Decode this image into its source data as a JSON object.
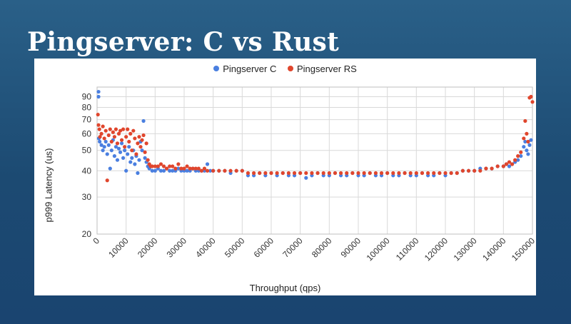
{
  "slide": {
    "title": "Pingserver: C vs Rust"
  },
  "chart_data": {
    "type": "scatter",
    "title": "",
    "xlabel": "Throughput (qps)",
    "ylabel": "p999 Latency (us)",
    "xlim": [
      0,
      150000
    ],
    "ylim": [
      20,
      100
    ],
    "y_scale": "log",
    "grid": true,
    "legend_position": "top",
    "x_ticks": [
      0,
      10000,
      20000,
      30000,
      40000,
      50000,
      60000,
      70000,
      80000,
      90000,
      100000,
      110000,
      120000,
      130000,
      140000,
      150000
    ],
    "y_ticks": [
      20,
      30,
      40,
      50,
      60,
      70,
      80,
      90
    ],
    "series": [
      {
        "name": "Pingserver C",
        "color": "#4a7fe0",
        "points": [
          [
            500,
            95
          ],
          [
            500,
            90
          ],
          [
            600,
            57
          ],
          [
            900,
            55
          ],
          [
            1500,
            53
          ],
          [
            2000,
            50
          ],
          [
            2500,
            52
          ],
          [
            3000,
            55
          ],
          [
            3500,
            48
          ],
          [
            4000,
            53
          ],
          [
            4500,
            41
          ],
          [
            5000,
            50
          ],
          [
            5500,
            56
          ],
          [
            6000,
            47
          ],
          [
            6500,
            52
          ],
          [
            7000,
            45
          ],
          [
            7500,
            51
          ],
          [
            8000,
            49
          ],
          [
            8500,
            54
          ],
          [
            9000,
            46
          ],
          [
            9500,
            50
          ],
          [
            10000,
            40
          ],
          [
            10500,
            48
          ],
          [
            11000,
            52
          ],
          [
            11500,
            44
          ],
          [
            12000,
            46
          ],
          [
            12500,
            50
          ],
          [
            13000,
            43
          ],
          [
            13500,
            47
          ],
          [
            14000,
            39
          ],
          [
            14500,
            45
          ],
          [
            15000,
            55
          ],
          [
            15500,
            50
          ],
          [
            16000,
            69
          ],
          [
            16500,
            46
          ],
          [
            17000,
            44
          ],
          [
            17500,
            42
          ],
          [
            18000,
            41
          ],
          [
            19000,
            40
          ],
          [
            20000,
            40
          ],
          [
            21000,
            41
          ],
          [
            22000,
            40
          ],
          [
            23000,
            40
          ],
          [
            24000,
            41
          ],
          [
            25000,
            40
          ],
          [
            26000,
            40
          ],
          [
            27000,
            40
          ],
          [
            28000,
            41
          ],
          [
            29000,
            40
          ],
          [
            30000,
            40
          ],
          [
            31000,
            40
          ],
          [
            32000,
            40
          ],
          [
            33000,
            41
          ],
          [
            34000,
            40
          ],
          [
            35000,
            40
          ],
          [
            36000,
            40
          ],
          [
            37000,
            40
          ],
          [
            38000,
            43
          ],
          [
            39000,
            40
          ],
          [
            40000,
            40
          ],
          [
            42000,
            40
          ],
          [
            44000,
            40
          ],
          [
            46000,
            39
          ],
          [
            48000,
            40
          ],
          [
            50000,
            40
          ],
          [
            52000,
            38
          ],
          [
            54000,
            38
          ],
          [
            56000,
            39
          ],
          [
            58000,
            38
          ],
          [
            60000,
            39
          ],
          [
            62000,
            38
          ],
          [
            64000,
            39
          ],
          [
            66000,
            38
          ],
          [
            68000,
            38
          ],
          [
            70000,
            39
          ],
          [
            72000,
            37
          ],
          [
            74000,
            38
          ],
          [
            76000,
            39
          ],
          [
            78000,
            38
          ],
          [
            80000,
            38
          ],
          [
            82000,
            39
          ],
          [
            84000,
            38
          ],
          [
            86000,
            38
          ],
          [
            88000,
            39
          ],
          [
            90000,
            38
          ],
          [
            92000,
            38
          ],
          [
            94000,
            39
          ],
          [
            96000,
            38
          ],
          [
            98000,
            38
          ],
          [
            100000,
            39
          ],
          [
            102000,
            38
          ],
          [
            104000,
            38
          ],
          [
            106000,
            39
          ],
          [
            108000,
            38
          ],
          [
            110000,
            38
          ],
          [
            112000,
            39
          ],
          [
            114000,
            38
          ],
          [
            116000,
            38
          ],
          [
            118000,
            39
          ],
          [
            120000,
            38
          ],
          [
            122000,
            39
          ],
          [
            124000,
            39
          ],
          [
            126000,
            40
          ],
          [
            128000,
            40
          ],
          [
            130000,
            40
          ],
          [
            132000,
            41
          ],
          [
            134000,
            41
          ],
          [
            136000,
            41
          ],
          [
            138000,
            42
          ],
          [
            140000,
            42
          ],
          [
            141000,
            43
          ],
          [
            142000,
            42
          ],
          [
            143000,
            43
          ],
          [
            144000,
            44
          ],
          [
            145000,
            45
          ],
          [
            146000,
            47
          ],
          [
            147000,
            52
          ],
          [
            147500,
            55
          ],
          [
            148000,
            50
          ],
          [
            148500,
            48
          ],
          [
            149000,
            53
          ],
          [
            149500,
            56
          ]
        ]
      },
      {
        "name": "Pingserver RS",
        "color": "#e0462d",
        "points": [
          [
            300,
            74
          ],
          [
            500,
            66
          ],
          [
            800,
            63
          ],
          [
            1000,
            58
          ],
          [
            1500,
            60
          ],
          [
            2000,
            65
          ],
          [
            2500,
            57
          ],
          [
            3000,
            62
          ],
          [
            3500,
            36
          ],
          [
            4000,
            59
          ],
          [
            4500,
            63
          ],
          [
            5000,
            55
          ],
          [
            5500,
            61
          ],
          [
            6000,
            58
          ],
          [
            6500,
            63
          ],
          [
            7000,
            54
          ],
          [
            7500,
            60
          ],
          [
            8000,
            62
          ],
          [
            8500,
            56
          ],
          [
            9000,
            63
          ],
          [
            9500,
            52
          ],
          [
            10000,
            58
          ],
          [
            10500,
            63
          ],
          [
            11000,
            55
          ],
          [
            11500,
            60
          ],
          [
            12000,
            50
          ],
          [
            12500,
            62
          ],
          [
            13000,
            57
          ],
          [
            13500,
            48
          ],
          [
            14000,
            54
          ],
          [
            14500,
            58
          ],
          [
            15000,
            52
          ],
          [
            15500,
            56
          ],
          [
            16000,
            59
          ],
          [
            16500,
            49
          ],
          [
            17000,
            54
          ],
          [
            17500,
            45
          ],
          [
            18000,
            43
          ],
          [
            18500,
            42
          ],
          [
            19000,
            42
          ],
          [
            20000,
            42
          ],
          [
            21000,
            42
          ],
          [
            22000,
            43
          ],
          [
            23000,
            42
          ],
          [
            24000,
            41
          ],
          [
            25000,
            42
          ],
          [
            26000,
            42
          ],
          [
            27000,
            41
          ],
          [
            28000,
            43
          ],
          [
            29000,
            41
          ],
          [
            30000,
            41
          ],
          [
            31000,
            42
          ],
          [
            32000,
            41
          ],
          [
            33000,
            41
          ],
          [
            34000,
            41
          ],
          [
            35000,
            41
          ],
          [
            36000,
            40
          ],
          [
            37000,
            41
          ],
          [
            38000,
            40
          ],
          [
            40000,
            40
          ],
          [
            42000,
            40
          ],
          [
            44000,
            40
          ],
          [
            46000,
            40
          ],
          [
            48000,
            40
          ],
          [
            50000,
            40
          ],
          [
            52000,
            39
          ],
          [
            54000,
            39
          ],
          [
            56000,
            39
          ],
          [
            58000,
            39
          ],
          [
            60000,
            39
          ],
          [
            62000,
            39
          ],
          [
            64000,
            39
          ],
          [
            66000,
            39
          ],
          [
            68000,
            39
          ],
          [
            70000,
            39
          ],
          [
            72000,
            39
          ],
          [
            74000,
            39
          ],
          [
            76000,
            39
          ],
          [
            78000,
            39
          ],
          [
            80000,
            39
          ],
          [
            82000,
            39
          ],
          [
            84000,
            39
          ],
          [
            86000,
            39
          ],
          [
            88000,
            39
          ],
          [
            90000,
            39
          ],
          [
            92000,
            39
          ],
          [
            94000,
            39
          ],
          [
            96000,
            39
          ],
          [
            98000,
            39
          ],
          [
            100000,
            39
          ],
          [
            102000,
            39
          ],
          [
            104000,
            39
          ],
          [
            106000,
            39
          ],
          [
            108000,
            39
          ],
          [
            110000,
            39
          ],
          [
            112000,
            39
          ],
          [
            114000,
            39
          ],
          [
            116000,
            39
          ],
          [
            118000,
            39
          ],
          [
            120000,
            39
          ],
          [
            122000,
            39
          ],
          [
            124000,
            39
          ],
          [
            126000,
            40
          ],
          [
            128000,
            40
          ],
          [
            130000,
            40
          ],
          [
            132000,
            40
          ],
          [
            134000,
            41
          ],
          [
            136000,
            41
          ],
          [
            138000,
            42
          ],
          [
            140000,
            42
          ],
          [
            141000,
            43
          ],
          [
            142000,
            44
          ],
          [
            143000,
            43
          ],
          [
            144000,
            45
          ],
          [
            145000,
            47
          ],
          [
            146000,
            49
          ],
          [
            147000,
            57
          ],
          [
            147500,
            69
          ],
          [
            148000,
            60
          ],
          [
            148500,
            55
          ],
          [
            149000,
            89
          ],
          [
            149500,
            90
          ],
          [
            150000,
            85
          ]
        ]
      }
    ]
  }
}
